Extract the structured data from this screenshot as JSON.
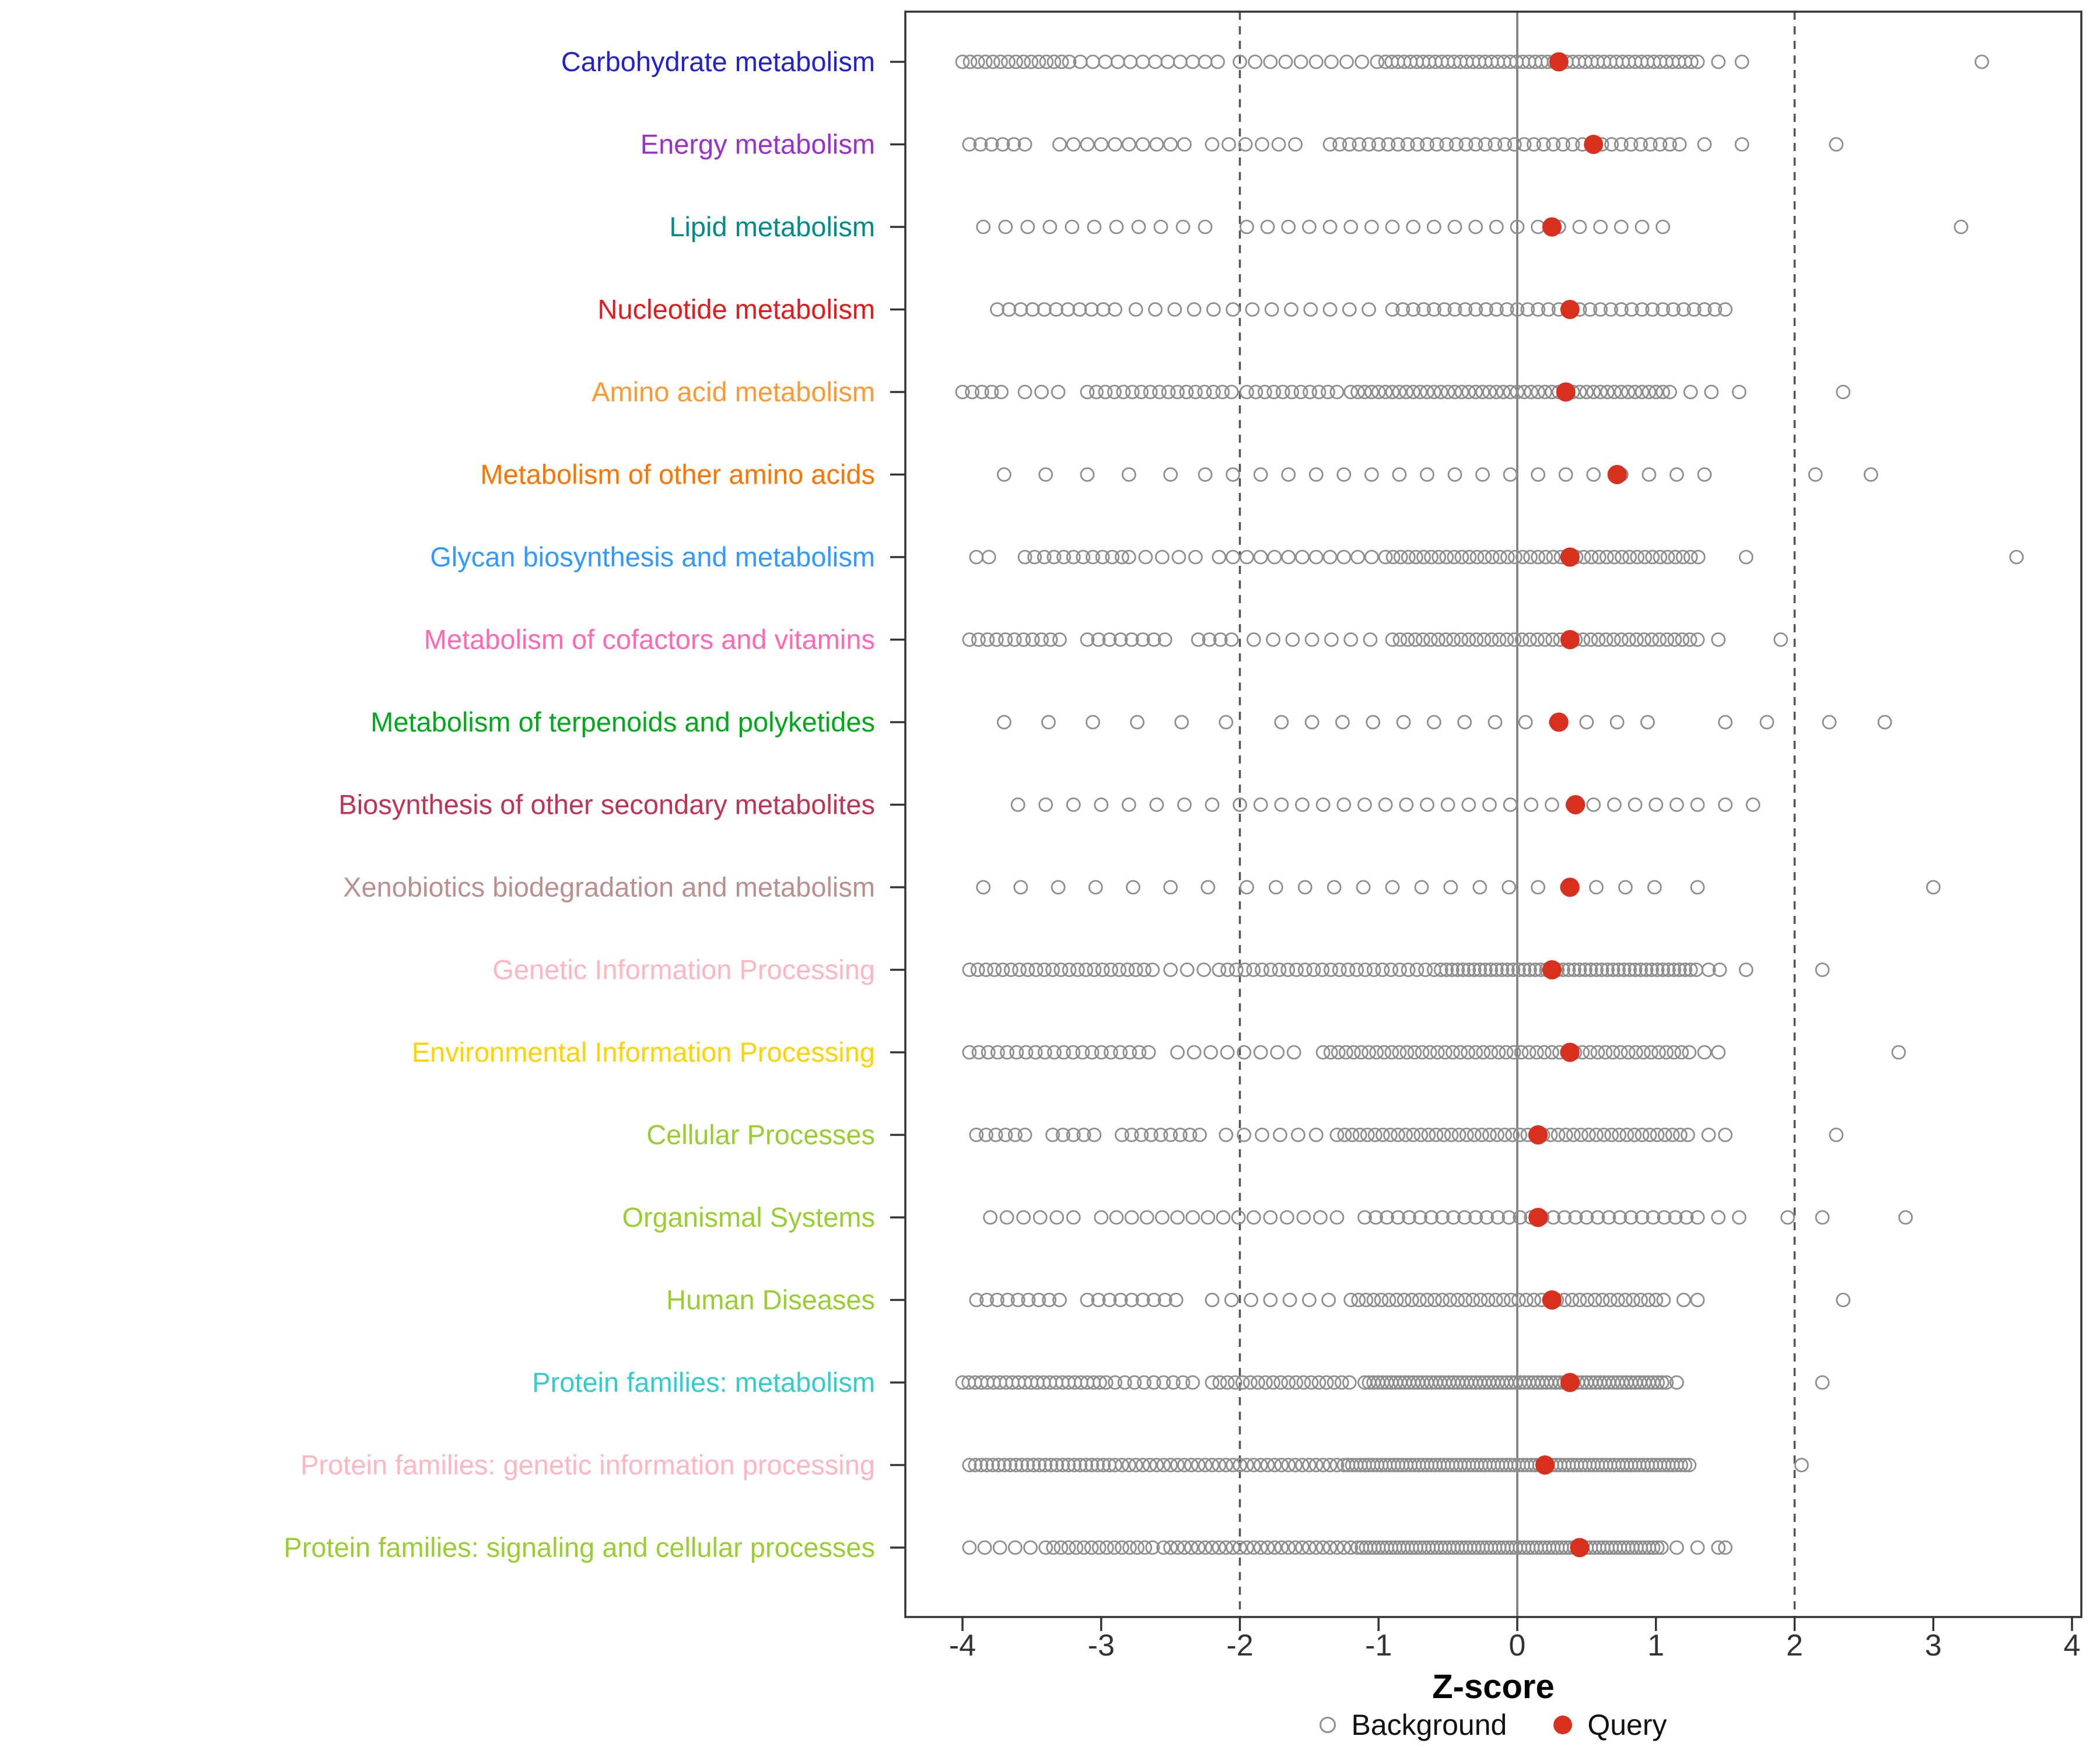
{
  "chart_data": {
    "type": "scatter",
    "variant": "horizontal-strip-plot",
    "title": "",
    "xlabel": "Z-score",
    "ylabel": "",
    "xlim": [
      -4.45,
      4.1
    ],
    "x_ticks": [
      -4,
      -3,
      -2,
      -1,
      0,
      1,
      2,
      3,
      4
    ],
    "grid": false,
    "zero_line": 0,
    "thresholds": [
      -2,
      2
    ],
    "legend": {
      "position": "bottom",
      "background_label": "Background",
      "query_label": "Query"
    },
    "colors": {
      "query": "#D7301F",
      "background_stroke": "#8E8E8E",
      "threshold_line": "#555555",
      "zero_line": "#7A7A7A",
      "axis_text": "#333333",
      "panel_border": "#333333"
    },
    "categories": [
      {
        "label": "Carbohydrate metabolism",
        "color": "#2222CC",
        "query": 0.3,
        "background": [
          [
            -4.0,
            -3.2,
            0.055
          ],
          [
            -3.15,
            -2.1,
            0.09
          ],
          [
            -2.0,
            -1.0,
            0.11
          ],
          [
            -0.95,
            1.3,
            0.045
          ],
          1.45,
          1.62,
          3.35
        ]
      },
      {
        "label": "Energy metabolism",
        "color": "#9932CC",
        "query": 0.55,
        "background": [
          [
            -3.95,
            -3.55,
            0.08
          ],
          [
            -3.3,
            -2.4,
            0.1
          ],
          [
            -2.2,
            -1.55,
            0.12
          ],
          [
            -1.35,
            1.2,
            0.07
          ],
          1.35,
          1.62,
          2.3
        ]
      },
      {
        "label": "Lipid metabolism",
        "color": "#008B8B",
        "query": 0.25,
        "background": [
          [
            -3.85,
            -2.1,
            0.16
          ],
          [
            -1.95,
            1.1,
            0.15
          ],
          3.2
        ]
      },
      {
        "label": "Nucleotide metabolism",
        "color": "#E31A1C",
        "query": 0.38,
        "background": [
          [
            -3.75,
            -2.9,
            0.085
          ],
          [
            -2.75,
            -1.0,
            0.14
          ],
          [
            -0.9,
            1.5,
            0.075
          ]
        ]
      },
      {
        "label": "Amino acid metabolism",
        "color": "#FF9933",
        "query": 0.35,
        "background": [
          [
            -4.0,
            -3.7,
            0.07
          ],
          [
            -3.55,
            -3.3,
            0.12
          ],
          [
            -3.1,
            -2.0,
            0.065
          ],
          [
            -1.95,
            -1.3,
            0.065
          ],
          [
            -1.2,
            1.1,
            0.05
          ],
          1.25,
          1.4,
          1.6,
          2.35
        ]
      },
      {
        "label": "Metabolism of other amino acids",
        "color": "#FF7400",
        "query": 0.72,
        "background": [
          [
            -3.7,
            -2.4,
            0.3
          ],
          [
            -2.25,
            1.45,
            0.2
          ],
          2.15,
          2.55
        ]
      },
      {
        "label": "Glycan biosynthesis and metabolism",
        "color": "#3399FF",
        "query": 0.38,
        "background": [
          [
            -3.9,
            -3.8,
            0.09
          ],
          [
            -3.55,
            -2.85,
            0.07
          ],
          [
            -2.8,
            -2.3,
            0.12
          ],
          [
            -2.15,
            -1.0,
            0.1
          ],
          [
            -0.95,
            1.35,
            0.055
          ],
          1.65,
          3.6
        ]
      },
      {
        "label": "Metabolism of cofactors and vitamins",
        "color": "#FF69B4",
        "query": 0.38,
        "background": [
          [
            -3.95,
            -3.3,
            0.065
          ],
          [
            -3.1,
            -2.5,
            0.08
          ],
          [
            -2.3,
            -2.05,
            0.08
          ],
          [
            -1.9,
            -1.0,
            0.14
          ],
          [
            -0.9,
            1.3,
            0.055
          ],
          1.45,
          1.9
        ]
      },
      {
        "label": "Metabolism of terpenoids and polyketides",
        "color": "#00A91C",
        "query": 0.3,
        "background": [
          [
            -3.7,
            -2.0,
            0.32
          ],
          [
            -1.7,
            1.1,
            0.22
          ],
          1.5,
          1.8,
          2.25,
          2.65
        ]
      },
      {
        "label": "Biosynthesis of other secondary metabolites",
        "color": "#BE3455",
        "query": 0.42,
        "background": [
          [
            -3.6,
            -2.0,
            0.2
          ],
          [
            -1.85,
            1.3,
            0.15
          ],
          1.5,
          1.7
        ]
      },
      {
        "label": "Xenobiotics biodegradation and metabolism",
        "color": "#BC8F8F",
        "query": 0.38,
        "background": [
          [
            -3.85,
            -2.2,
            0.27
          ],
          [
            -1.95,
            1.05,
            0.21
          ],
          1.3,
          3.0
        ]
      },
      {
        "label": "Genetic Information Processing",
        "color": "#FFB6C1",
        "query": 0.25,
        "background": [
          [
            -3.95,
            -2.6,
            0.06
          ],
          [
            -2.5,
            -2.2,
            0.12
          ],
          [
            -2.15,
            -0.6,
            0.062
          ],
          [
            -0.55,
            1.3,
            0.04
          ],
          1.38,
          1.46,
          1.65,
          2.2
        ]
      },
      {
        "label": "Environmental Information Processing",
        "color": "#FFD300",
        "query": 0.38,
        "background": [
          [
            -3.95,
            -2.6,
            0.068
          ],
          [
            -2.45,
            -1.5,
            0.12
          ],
          [
            -1.4,
            1.25,
            0.055
          ],
          1.35,
          1.45,
          2.75
        ]
      },
      {
        "label": "Cellular Processes",
        "color": "#9ACD32",
        "query": 0.15,
        "background": [
          [
            -3.9,
            -3.5,
            0.07
          ],
          [
            -3.35,
            -3.05,
            0.075
          ],
          [
            -2.85,
            -2.25,
            0.07
          ],
          [
            -2.1,
            -1.4,
            0.13
          ],
          [
            -1.3,
            1.25,
            0.055
          ],
          1.38,
          1.5,
          2.3
        ]
      },
      {
        "label": "Organismal Systems",
        "color": "#9ACD32",
        "query": 0.15,
        "background": [
          [
            -3.8,
            -3.2,
            0.12
          ],
          [
            -3.0,
            -2.0,
            0.11
          ],
          [
            -1.9,
            -1.2,
            0.12
          ],
          [
            -1.1,
            1.3,
            0.08
          ],
          1.45,
          1.6,
          1.95,
          2.2,
          2.8
        ]
      },
      {
        "label": "Human Diseases",
        "color": "#9ACD32",
        "query": 0.25,
        "background": [
          [
            -3.9,
            -3.3,
            0.075
          ],
          [
            -3.1,
            -2.4,
            0.08
          ],
          [
            -2.2,
            -1.3,
            0.14
          ],
          [
            -1.2,
            1.1,
            0.055
          ],
          1.2,
          1.3,
          2.35
        ]
      },
      {
        "label": "Protein families: metabolism",
        "color": "#33CCCC",
        "query": 0.38,
        "background": [
          [
            -4.0,
            -2.95,
            0.045
          ],
          [
            -2.9,
            -2.3,
            0.07
          ],
          [
            -2.2,
            -1.2,
            0.055
          ],
          [
            -1.1,
            1.1,
            0.032
          ],
          1.15,
          2.2
        ]
      },
      {
        "label": "Protein families: genetic information processing",
        "color": "#FFB6C1",
        "query": 0.2,
        "background": [
          [
            -3.95,
            -2.9,
            0.042
          ],
          [
            -2.85,
            -1.3,
            0.05
          ],
          [
            -1.25,
            1.25,
            0.03
          ],
          2.05
        ]
      },
      {
        "label": "Protein families: signaling and cellular processes",
        "color": "#9ACD32",
        "query": 0.45,
        "background": [
          [
            -3.95,
            -3.5,
            0.11
          ],
          [
            -3.4,
            -2.6,
            0.055
          ],
          [
            -2.55,
            -1.2,
            0.05
          ],
          [
            -1.15,
            1.05,
            0.03
          ],
          1.15,
          1.3,
          1.45,
          1.5
        ]
      }
    ]
  }
}
